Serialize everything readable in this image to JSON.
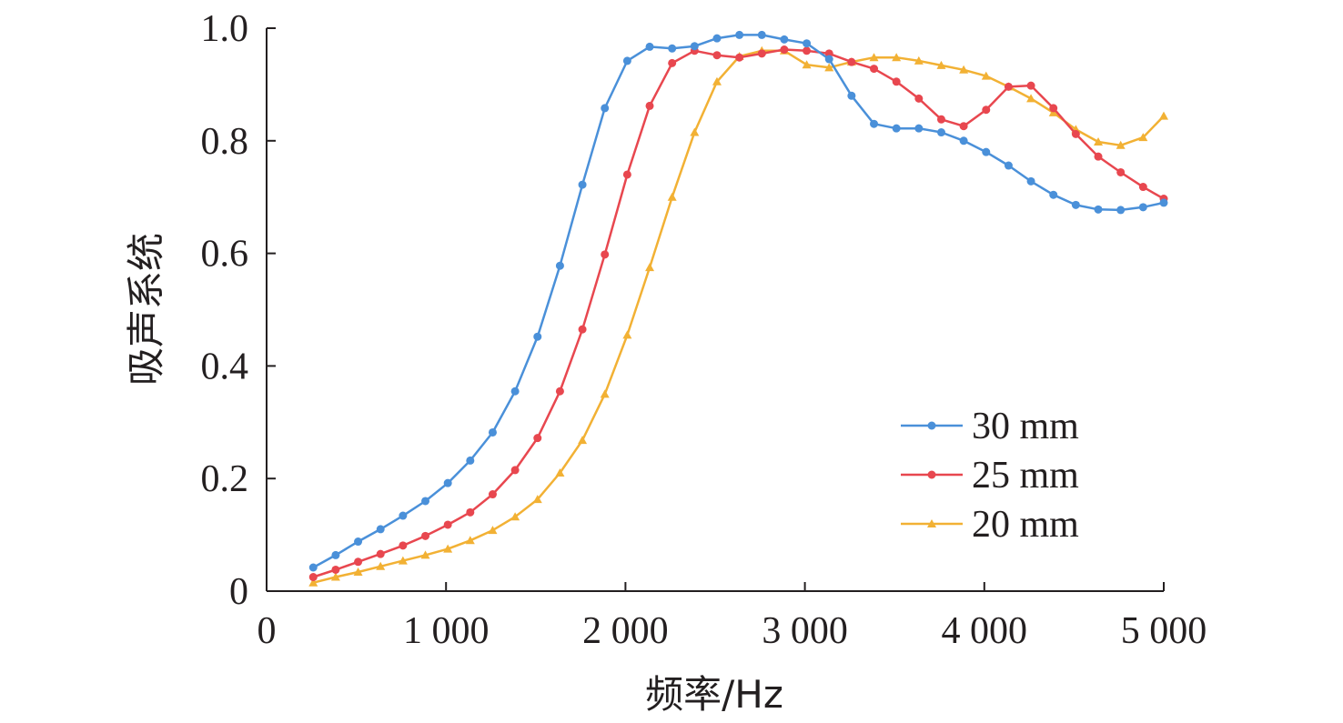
{
  "chart_data": {
    "type": "line",
    "xlabel": "频率/Hz",
    "ylabel": "吸声系统",
    "xlim": [
      0,
      5000
    ],
    "ylim": [
      0,
      1.0
    ],
    "x_ticks": [
      0,
      1000,
      2000,
      3000,
      4000,
      5000
    ],
    "x_tick_labels": [
      "0",
      "1 000",
      "2 000",
      "3 000",
      "4 000",
      "5 000"
    ],
    "y_ticks": [
      0,
      0.2,
      0.4,
      0.6,
      0.8,
      1.0
    ],
    "y_tick_labels": [
      "0",
      "0.2",
      "0.4",
      "0.6",
      "0.8",
      "1.0"
    ],
    "grid": false,
    "legend_position": "right-middle",
    "series": [
      {
        "name": "30 mm",
        "color": "#4a90d9",
        "marker": "circle",
        "x": [
          260,
          385,
          510,
          635,
          760,
          885,
          1010,
          1135,
          1260,
          1385,
          1510,
          1635,
          1760,
          1885,
          2010,
          2135,
          2260,
          2385,
          2510,
          2635,
          2760,
          2885,
          3010,
          3135,
          3260,
          3385,
          3510,
          3635,
          3760,
          3885,
          4010,
          4135,
          4260,
          4385,
          4510,
          4635,
          4760,
          4885,
          5000
        ],
        "y": [
          0.042,
          0.064,
          0.088,
          0.11,
          0.134,
          0.16,
          0.192,
          0.232,
          0.282,
          0.355,
          0.452,
          0.578,
          0.722,
          0.858,
          0.942,
          0.967,
          0.964,
          0.968,
          0.982,
          0.988,
          0.988,
          0.98,
          0.973,
          0.945,
          0.88,
          0.83,
          0.822,
          0.822,
          0.815,
          0.8,
          0.78,
          0.756,
          0.728,
          0.704,
          0.686,
          0.678,
          0.677,
          0.682,
          0.69
        ]
      },
      {
        "name": "25 mm",
        "color": "#e8474f",
        "marker": "circle",
        "x": [
          260,
          385,
          510,
          635,
          760,
          885,
          1010,
          1135,
          1260,
          1385,
          1510,
          1635,
          1760,
          1885,
          2010,
          2135,
          2260,
          2385,
          2510,
          2635,
          2760,
          2885,
          3010,
          3135,
          3260,
          3385,
          3510,
          3635,
          3760,
          3885,
          4010,
          4135,
          4260,
          4385,
          4510,
          4635,
          4760,
          4885,
          5000
        ],
        "y": [
          0.025,
          0.038,
          0.052,
          0.066,
          0.081,
          0.098,
          0.118,
          0.14,
          0.172,
          0.215,
          0.272,
          0.355,
          0.465,
          0.598,
          0.74,
          0.862,
          0.938,
          0.96,
          0.952,
          0.948,
          0.955,
          0.962,
          0.96,
          0.955,
          0.94,
          0.928,
          0.905,
          0.875,
          0.838,
          0.826,
          0.855,
          0.896,
          0.898,
          0.858,
          0.812,
          0.772,
          0.744,
          0.718,
          0.697
        ]
      },
      {
        "name": "20 mm",
        "color": "#f2b134",
        "marker": "triangle",
        "x": [
          260,
          385,
          510,
          635,
          760,
          885,
          1010,
          1135,
          1260,
          1385,
          1510,
          1635,
          1760,
          1885,
          2010,
          2135,
          2260,
          2385,
          2510,
          2635,
          2760,
          2885,
          3010,
          3135,
          3260,
          3385,
          3510,
          3635,
          3760,
          3885,
          4010,
          4135,
          4260,
          4385,
          4510,
          4635,
          4760,
          4885,
          5000
        ],
        "y": [
          0.015,
          0.025,
          0.034,
          0.044,
          0.054,
          0.064,
          0.075,
          0.09,
          0.108,
          0.132,
          0.163,
          0.21,
          0.268,
          0.35,
          0.455,
          0.575,
          0.7,
          0.815,
          0.905,
          0.95,
          0.96,
          0.96,
          0.935,
          0.93,
          0.94,
          0.948,
          0.948,
          0.942,
          0.934,
          0.926,
          0.915,
          0.896,
          0.875,
          0.85,
          0.82,
          0.798,
          0.792,
          0.806,
          0.844
        ]
      }
    ]
  }
}
